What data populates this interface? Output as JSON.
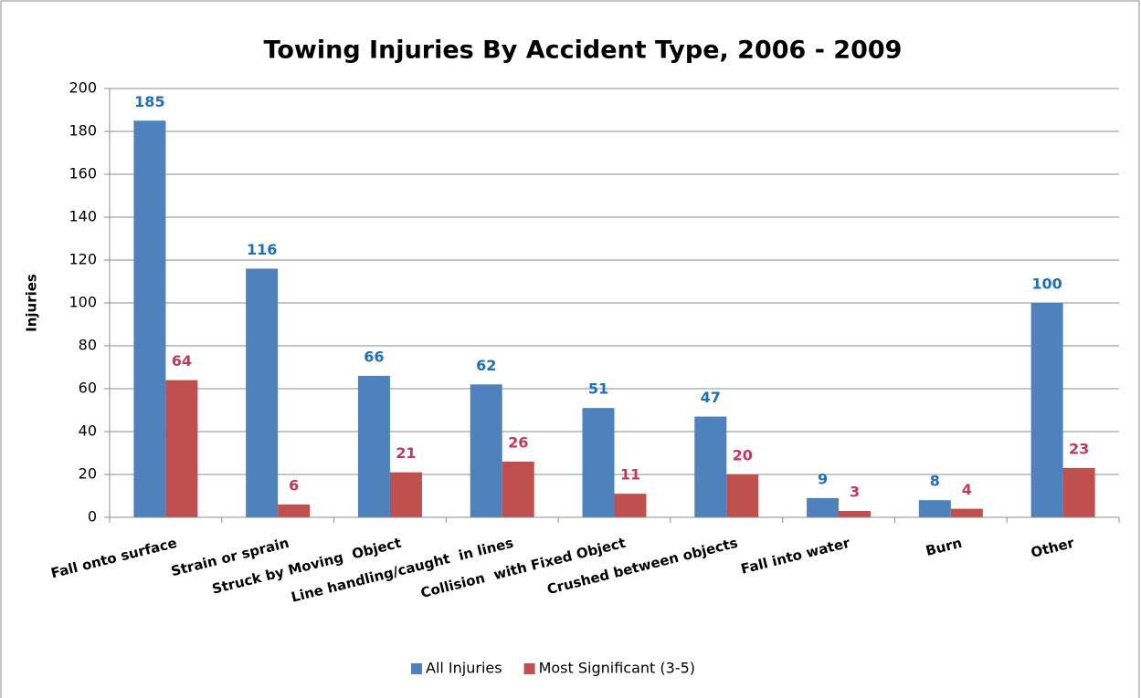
{
  "chart_data": {
    "type": "bar",
    "title": "Towing Injuries By Accident Type, 2006 - 2009",
    "y_label": "Injuries",
    "categories": [
      "Fall onto surface",
      "Strain or sprain",
      "Struck by Moving  Object",
      "Line handling/caught  in lines",
      "Collision  with Fixed Object",
      "Crushed between objects",
      "Fall into water",
      "Burn",
      "Other"
    ],
    "series": [
      {
        "name": "All Injuries",
        "color": "#4f81bd",
        "label_color": "#1f6fb8",
        "values": [
          185,
          116,
          66,
          62,
          51,
          47,
          9,
          8,
          100
        ]
      },
      {
        "name": "Most Significant (3-5)",
        "color": "#c0504d",
        "label_color": "#c0395a",
        "values": [
          64,
          6,
          21,
          26,
          11,
          20,
          3,
          4,
          23
        ]
      }
    ],
    "ylim": [
      0,
      200
    ],
    "yticks": [
      0,
      20,
      40,
      60,
      80,
      100,
      120,
      140,
      160,
      180,
      200
    ],
    "grid": true,
    "legend": "bottom"
  }
}
